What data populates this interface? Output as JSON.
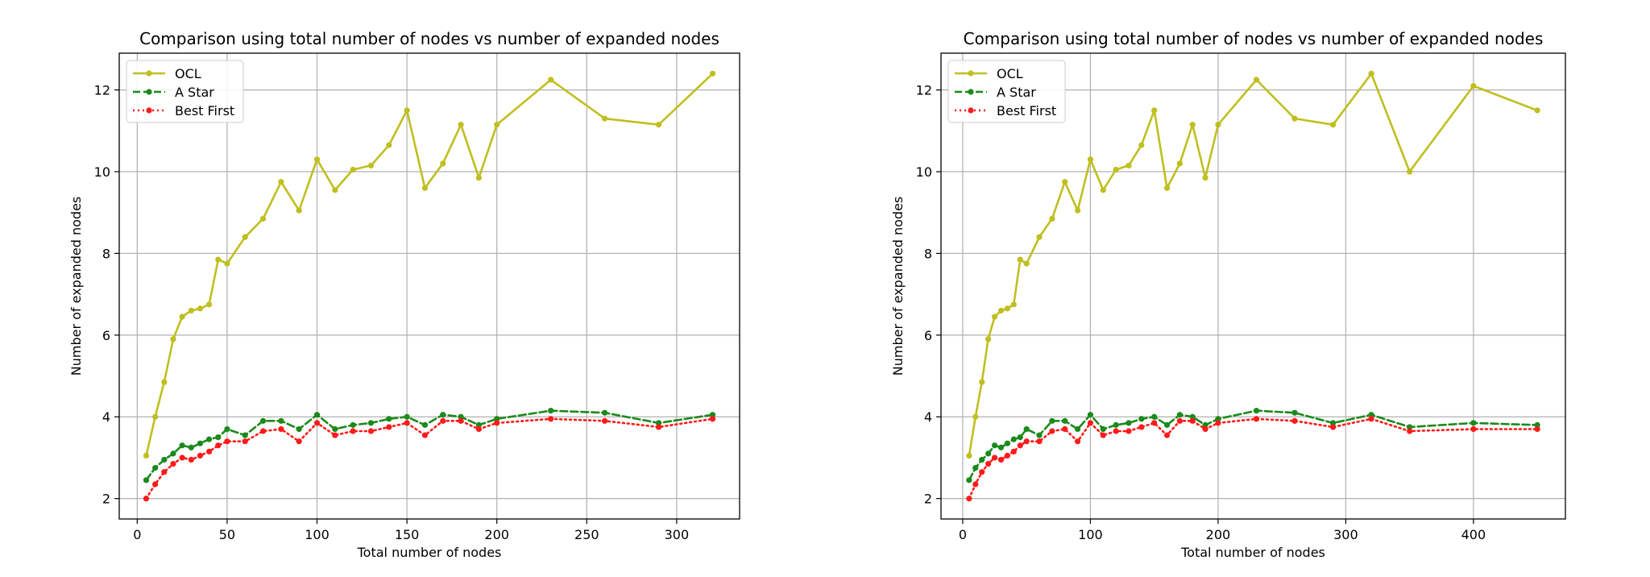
{
  "chart_data": [
    {
      "type": "line",
      "title": "Comparison using total number of nodes vs number of expanded nodes",
      "xlabel": "Total number of nodes",
      "ylabel": "Number of expanded nodes",
      "xlim": [
        -10,
        335
      ],
      "ylim": [
        1.5,
        12.9
      ],
      "xticks": [
        0,
        50,
        100,
        150,
        200,
        250,
        300
      ],
      "yticks": [
        2,
        4,
        6,
        8,
        10,
        12
      ],
      "grid": true,
      "legend_position": "top-left",
      "series": [
        {
          "name": "OCL",
          "color": "#bfbf1f",
          "style": "solid",
          "x": [
            5,
            10,
            15,
            20,
            25,
            30,
            35,
            40,
            45,
            50,
            60,
            70,
            80,
            90,
            100,
            110,
            120,
            130,
            140,
            150,
            160,
            170,
            180,
            190,
            200,
            230,
            260,
            290,
            320
          ],
          "y": [
            3.05,
            4.0,
            4.85,
            5.9,
            6.45,
            6.6,
            6.65,
            6.75,
            7.85,
            7.75,
            8.4,
            8.85,
            9.75,
            9.05,
            10.3,
            9.55,
            10.05,
            10.15,
            10.65,
            11.5,
            9.6,
            10.2,
            11.15,
            9.85,
            11.15,
            12.25,
            11.3,
            11.15,
            12.4
          ]
        },
        {
          "name": "A Star",
          "color": "#1a8a1a",
          "style": "dashed",
          "x": [
            5,
            10,
            15,
            20,
            25,
            30,
            35,
            40,
            45,
            50,
            60,
            70,
            80,
            90,
            100,
            110,
            120,
            130,
            140,
            150,
            160,
            170,
            180,
            190,
            200,
            230,
            260,
            290,
            320
          ],
          "y": [
            2.45,
            2.75,
            2.95,
            3.1,
            3.3,
            3.25,
            3.35,
            3.45,
            3.5,
            3.7,
            3.55,
            3.9,
            3.9,
            3.7,
            4.05,
            3.7,
            3.8,
            3.85,
            3.95,
            4.0,
            3.8,
            4.05,
            4.0,
            3.8,
            3.95,
            4.15,
            4.1,
            3.85,
            4.05
          ]
        },
        {
          "name": "Best First",
          "color": "#ff1a1a",
          "style": "dotted",
          "x": [
            5,
            10,
            15,
            20,
            25,
            30,
            35,
            40,
            45,
            50,
            60,
            70,
            80,
            90,
            100,
            110,
            120,
            130,
            140,
            150,
            160,
            170,
            180,
            190,
            200,
            230,
            260,
            290,
            320
          ],
          "y": [
            2.0,
            2.35,
            2.65,
            2.85,
            3.0,
            2.95,
            3.05,
            3.15,
            3.3,
            3.4,
            3.4,
            3.65,
            3.7,
            3.4,
            3.85,
            3.55,
            3.65,
            3.65,
            3.75,
            3.85,
            3.55,
            3.9,
            3.9,
            3.7,
            3.85,
            3.95,
            3.9,
            3.75,
            3.95
          ]
        }
      ]
    },
    {
      "type": "line",
      "title": "Comparison using total number of nodes vs number of expanded nodes",
      "xlabel": "Total number of nodes",
      "ylabel": "Number of expanded nodes",
      "xlim": [
        -17,
        472
      ],
      "ylim": [
        1.5,
        12.9
      ],
      "xticks": [
        0,
        100,
        200,
        300,
        400
      ],
      "yticks": [
        2,
        4,
        6,
        8,
        10,
        12
      ],
      "grid": true,
      "legend_position": "top-left",
      "series": [
        {
          "name": "OCL",
          "color": "#bfbf1f",
          "style": "solid",
          "x": [
            5,
            10,
            15,
            20,
            25,
            30,
            35,
            40,
            45,
            50,
            60,
            70,
            80,
            90,
            100,
            110,
            120,
            130,
            140,
            150,
            160,
            170,
            180,
            190,
            200,
            230,
            260,
            290,
            320,
            350,
            400,
            450
          ],
          "y": [
            3.05,
            4.0,
            4.85,
            5.9,
            6.45,
            6.6,
            6.65,
            6.75,
            7.85,
            7.75,
            8.4,
            8.85,
            9.75,
            9.05,
            10.3,
            9.55,
            10.05,
            10.15,
            10.65,
            11.5,
            9.6,
            10.2,
            11.15,
            9.85,
            11.15,
            12.25,
            11.3,
            11.15,
            12.4,
            10.0,
            12.1,
            11.5
          ]
        },
        {
          "name": "A Star",
          "color": "#1a8a1a",
          "style": "dashed",
          "x": [
            5,
            10,
            15,
            20,
            25,
            30,
            35,
            40,
            45,
            50,
            60,
            70,
            80,
            90,
            100,
            110,
            120,
            130,
            140,
            150,
            160,
            170,
            180,
            190,
            200,
            230,
            260,
            290,
            320,
            350,
            400,
            450
          ],
          "y": [
            2.45,
            2.75,
            2.95,
            3.1,
            3.3,
            3.25,
            3.35,
            3.45,
            3.5,
            3.7,
            3.55,
            3.9,
            3.9,
            3.7,
            4.05,
            3.7,
            3.8,
            3.85,
            3.95,
            4.0,
            3.8,
            4.05,
            4.0,
            3.8,
            3.95,
            4.15,
            4.1,
            3.85,
            4.05,
            3.75,
            3.85,
            3.8
          ]
        },
        {
          "name": "Best First",
          "color": "#ff1a1a",
          "style": "dotted",
          "x": [
            5,
            10,
            15,
            20,
            25,
            30,
            35,
            40,
            45,
            50,
            60,
            70,
            80,
            90,
            100,
            110,
            120,
            130,
            140,
            150,
            160,
            170,
            180,
            190,
            200,
            230,
            260,
            290,
            320,
            350,
            400,
            450
          ],
          "y": [
            2.0,
            2.35,
            2.65,
            2.85,
            3.0,
            2.95,
            3.05,
            3.15,
            3.3,
            3.4,
            3.4,
            3.65,
            3.7,
            3.4,
            3.85,
            3.55,
            3.65,
            3.65,
            3.75,
            3.85,
            3.55,
            3.9,
            3.9,
            3.7,
            3.85,
            3.95,
            3.9,
            3.75,
            3.95,
            3.65,
            3.7,
            3.7
          ]
        }
      ]
    }
  ]
}
